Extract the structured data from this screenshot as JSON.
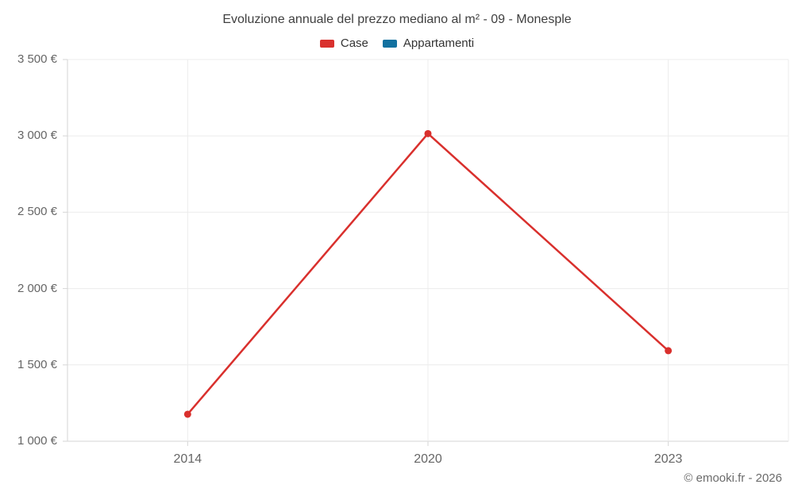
{
  "header": {
    "title": "Evoluzione annuale del prezzo mediano al m² - 09 - Monesple"
  },
  "legend": {
    "case": {
      "label": "Case",
      "color": "#d9302d"
    },
    "appartamenti": {
      "label": "Appartamenti",
      "color": "#1271a0"
    }
  },
  "footer": {
    "credit": "© emooki.fr - 2026"
  },
  "chart_data": {
    "type": "line",
    "title": "Evoluzione annuale del prezzo mediano al m² - 09 - Monesple",
    "categories": [
      "2014",
      "2020",
      "2023"
    ],
    "series": [
      {
        "name": "Case",
        "color": "#d9302d",
        "values": [
          1177,
          3015,
          1593
        ]
      },
      {
        "name": "Appartamenti",
        "color": "#1271a0",
        "values": []
      }
    ],
    "xlabel": "",
    "ylabel": "",
    "ylim": [
      1000,
      3500
    ],
    "yticks": [
      1000,
      1500,
      2000,
      2500,
      3000,
      3500
    ],
    "ytick_labels": [
      "1 000 €",
      "1 500 €",
      "2 000 €",
      "2 500 €",
      "3 000 €",
      "3 500 €"
    ],
    "grid": true,
    "legend_position": "top"
  }
}
